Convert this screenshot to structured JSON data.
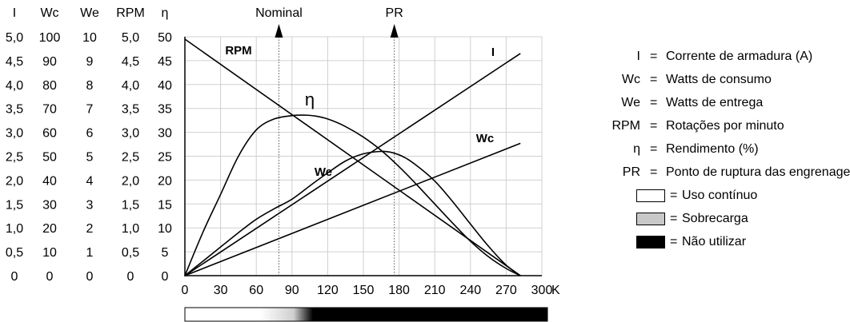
{
  "chart_data": {
    "type": "line",
    "column_headers": [
      "I",
      "Wc",
      "We",
      "RPM",
      "η"
    ],
    "scale_rows": [
      [
        "5,0",
        "100",
        "10",
        "5,0",
        "50"
      ],
      [
        "4,5",
        "90",
        "9",
        "4,5",
        "45"
      ],
      [
        "4,0",
        "80",
        "8",
        "4,0",
        "40"
      ],
      [
        "3,5",
        "70",
        "7",
        "3,5",
        "35"
      ],
      [
        "3,0",
        "60",
        "6",
        "3,0",
        "30"
      ],
      [
        "2,5",
        "50",
        "5",
        "2,5",
        "25"
      ],
      [
        "2,0",
        "40",
        "4",
        "2,0",
        "20"
      ],
      [
        "1,5",
        "30",
        "3",
        "1,5",
        "15"
      ],
      [
        "1,0",
        "20",
        "2",
        "1,0",
        "10"
      ],
      [
        "0,5",
        "10",
        "1",
        "0,5",
        "5"
      ],
      [
        "0",
        "0",
        "0",
        "0",
        "0"
      ]
    ],
    "xlim": [
      0,
      300
    ],
    "ylim": [
      0,
      50
    ],
    "x_ticks": [
      "0",
      "30",
      "60",
      "90",
      "120",
      "150",
      "180",
      "210",
      "240",
      "270",
      "300"
    ],
    "x_unit": "Kgfcm",
    "grid": true,
    "series": [
      {
        "name": "RPM",
        "label": "RPM",
        "x": [
          0,
          282
        ],
        "y": [
          49.5,
          0
        ]
      },
      {
        "name": "I",
        "label": "I",
        "x": [
          0,
          282
        ],
        "y": [
          0,
          46.5
        ]
      },
      {
        "name": "Wc",
        "label": "Wc",
        "x": [
          0,
          282
        ],
        "y": [
          0,
          27.7
        ]
      },
      {
        "name": "η",
        "label": "η",
        "x": [
          0,
          15,
          30,
          45,
          60,
          75,
          90,
          100,
          110,
          120,
          135,
          150,
          165,
          180,
          195,
          210,
          225,
          240,
          255,
          270,
          282
        ],
        "y": [
          0,
          9,
          17,
          25,
          30.5,
          32.8,
          33.5,
          33.6,
          33.4,
          32.8,
          31.2,
          29,
          26.2,
          22.8,
          19,
          15,
          11,
          7.2,
          4,
          1.5,
          0
        ]
      },
      {
        "name": "We",
        "label": "We",
        "x": [
          0,
          15,
          30,
          45,
          60,
          75,
          90,
          105,
          120,
          135,
          150,
          165,
          175,
          185,
          195,
          210,
          225,
          240,
          255,
          270,
          282
        ],
        "y": [
          0,
          3,
          6,
          9,
          11.8,
          14,
          16,
          18.8,
          21.5,
          24,
          25.5,
          26,
          25.7,
          24.7,
          23,
          19.8,
          15.5,
          10.8,
          6.2,
          2.2,
          0
        ]
      }
    ],
    "markers": [
      {
        "label": "Nominal",
        "x": 79
      },
      {
        "label": "PR",
        "x": 176
      }
    ],
    "band": {
      "stops": [
        {
          "x": 0,
          "color": "#ffffff"
        },
        {
          "x": 62,
          "color": "#ffffff"
        },
        {
          "x": 90,
          "color": "#cfcfcf"
        },
        {
          "x": 106,
          "color": "#000000"
        },
        {
          "x": 300,
          "color": "#000000"
        }
      ]
    }
  },
  "legend": [
    {
      "key": "I",
      "desc": "Corrente de armadura (A)"
    },
    {
      "key": "Wc",
      "desc": "Watts de consumo"
    },
    {
      "key": "We",
      "desc": "Watts de entrega"
    },
    {
      "key": "RPM",
      "desc": "Rotações por minuto"
    },
    {
      "key": "η",
      "desc": "Rendimento (%)"
    },
    {
      "key": "PR",
      "desc": "Ponto de ruptura das engrenagens"
    }
  ],
  "legend_eq": "=",
  "zones": [
    {
      "desc": "Uso contínuo",
      "color": "#ffffff"
    },
    {
      "desc": "Sobrecarga",
      "color": "#c8c8c8"
    },
    {
      "desc": "Não utilizar",
      "color": "#000000"
    }
  ]
}
